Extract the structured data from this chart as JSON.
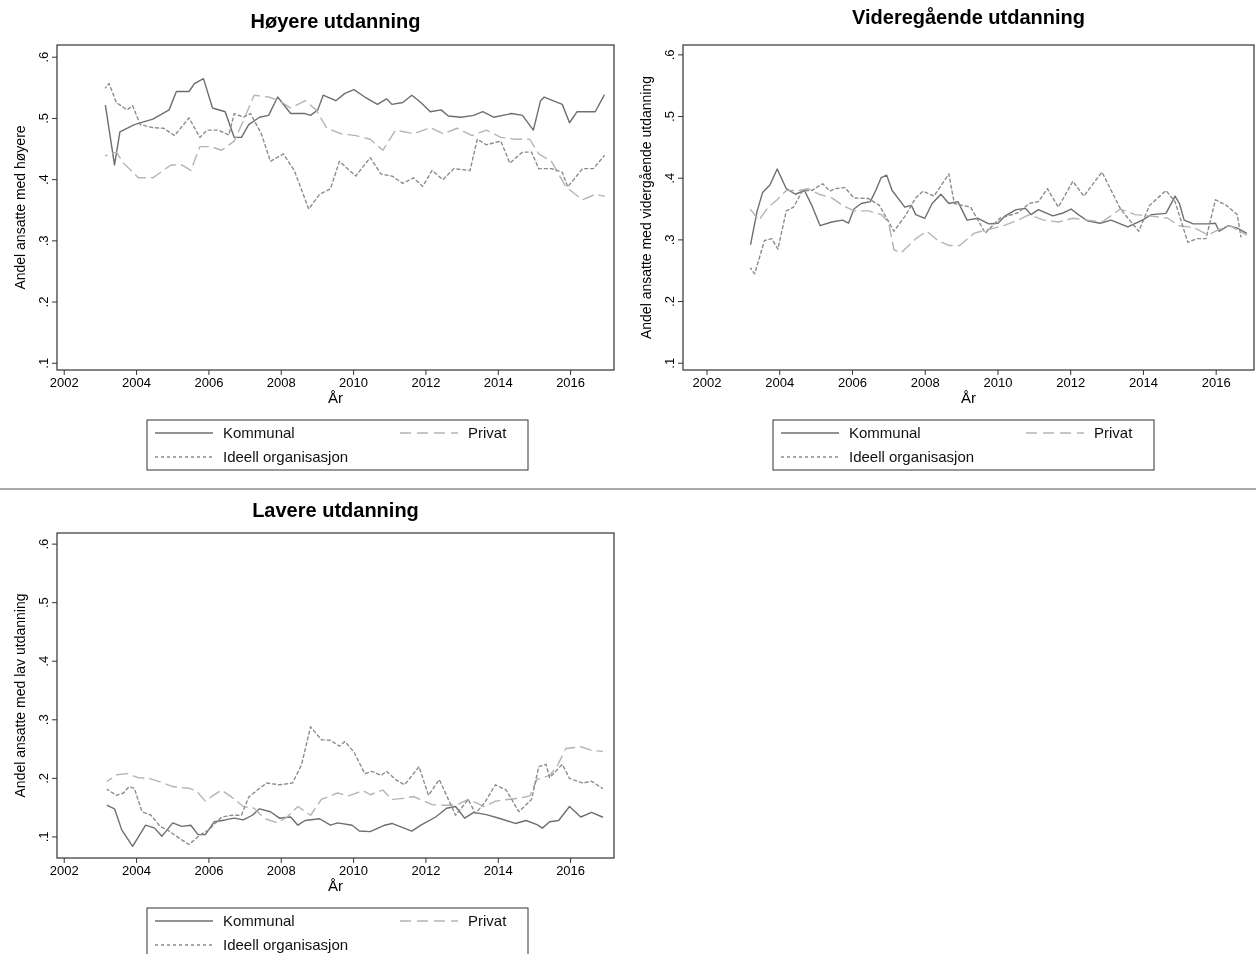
{
  "chart_data": [
    {
      "type": "line",
      "title": "Høyere utdanning",
      "xlabel": "År",
      "ylabel": "Andel ansatte med høyere",
      "xlim": [
        2001.8,
        2017.2
      ],
      "ylim": [
        0.089,
        0.62
      ],
      "xticks": [
        2002,
        2004,
        2006,
        2008,
        2010,
        2012,
        2014,
        2016
      ],
      "yticks": [
        {
          "value": 0.1,
          "label": ".1"
        },
        {
          "value": 0.2,
          "label": ".2"
        },
        {
          "value": 0.3,
          "label": ".3"
        },
        {
          "value": 0.4,
          "label": ".4"
        },
        {
          "value": 0.5,
          "label": ".5"
        },
        {
          "value": 0.6,
          "label": ".6"
        }
      ],
      "legend": "bottom",
      "series": [
        {
          "name": "Kommunal",
          "color": "#6e6e6e",
          "line_style": "solid",
          "x": [
            2003.14,
            2003.39,
            2003.54,
            2003.94,
            2004.45,
            2004.9,
            2005.1,
            2005.45,
            2005.6,
            2005.85,
            2006.1,
            2006.45,
            2006.7,
            2006.9,
            2007.1,
            2007.4,
            2007.65,
            2007.9,
            2008.26,
            2008.66,
            2008.81,
            2009.01,
            2009.16,
            2009.51,
            2009.76,
            2010.01,
            2010.31,
            2010.66,
            2010.91,
            2011.06,
            2011.36,
            2011.61,
            2011.86,
            2012.12,
            2012.42,
            2012.62,
            2012.97,
            2013.32,
            2013.57,
            2013.87,
            2014.37,
            2014.67,
            2014.97,
            2015.17,
            2015.27,
            2015.77,
            2015.97,
            2016.18,
            2016.68,
            2016.93
          ],
          "values": [
            0.521,
            0.424,
            0.478,
            0.49,
            0.499,
            0.514,
            0.544,
            0.544,
            0.557,
            0.565,
            0.517,
            0.511,
            0.469,
            0.469,
            0.49,
            0.502,
            0.505,
            0.535,
            0.508,
            0.508,
            0.505,
            0.514,
            0.538,
            0.529,
            0.541,
            0.547,
            0.535,
            0.523,
            0.532,
            0.523,
            0.526,
            0.538,
            0.526,
            0.511,
            0.514,
            0.504,
            0.502,
            0.505,
            0.511,
            0.502,
            0.508,
            0.505,
            0.481,
            0.529,
            0.535,
            0.523,
            0.493,
            0.511,
            0.511,
            0.538
          ]
        },
        {
          "name": "Privat",
          "color": "#b4b4b4",
          "line_style": "dashed",
          "x": [
            2003.14,
            2003.44,
            2003.64,
            2004.05,
            2004.45,
            2004.95,
            2005.25,
            2005.5,
            2005.75,
            2006.05,
            2006.35,
            2006.7,
            2006.95,
            2007.25,
            2007.65,
            2007.95,
            2008.26,
            2008.66,
            2008.96,
            2009.26,
            2009.66,
            2010.06,
            2010.46,
            2010.81,
            2011.16,
            2011.66,
            2012.12,
            2012.47,
            2012.87,
            2013.27,
            2013.67,
            2014.07,
            2014.47,
            2014.87,
            2015.12,
            2015.47,
            2015.87,
            2016.33,
            2016.68,
            2016.93
          ],
          "values": [
            0.439,
            0.445,
            0.427,
            0.403,
            0.403,
            0.424,
            0.424,
            0.415,
            0.454,
            0.454,
            0.448,
            0.463,
            0.496,
            0.538,
            0.535,
            0.529,
            0.517,
            0.529,
            0.514,
            0.484,
            0.475,
            0.472,
            0.466,
            0.448,
            0.481,
            0.475,
            0.485,
            0.475,
            0.484,
            0.472,
            0.481,
            0.469,
            0.466,
            0.466,
            0.442,
            0.43,
            0.388,
            0.367,
            0.376,
            0.373
          ]
        },
        {
          "name": "Ideell organisasjon",
          "color": "#8c8c8c",
          "line_style": "dotted",
          "x": [
            2003.14,
            2003.24,
            2003.44,
            2003.74,
            2003.89,
            2004.1,
            2004.45,
            2004.75,
            2005.05,
            2005.45,
            2005.75,
            2005.95,
            2006.25,
            2006.55,
            2006.7,
            2006.95,
            2007.15,
            2007.45,
            2007.7,
            2008.06,
            2008.36,
            2008.76,
            2009.06,
            2009.36,
            2009.61,
            2010.06,
            2010.46,
            2010.76,
            2011.06,
            2011.36,
            2011.66,
            2011.91,
            2012.17,
            2012.47,
            2012.77,
            2013.22,
            2013.42,
            2013.67,
            2014.07,
            2014.32,
            2014.67,
            2014.92,
            2015.12,
            2015.47,
            2015.77,
            2015.92,
            2016.33,
            2016.63,
            2016.93
          ],
          "values": [
            0.55,
            0.557,
            0.526,
            0.514,
            0.521,
            0.49,
            0.485,
            0.484,
            0.472,
            0.501,
            0.469,
            0.481,
            0.481,
            0.473,
            0.508,
            0.502,
            0.508,
            0.475,
            0.43,
            0.442,
            0.415,
            0.352,
            0.376,
            0.385,
            0.43,
            0.406,
            0.436,
            0.409,
            0.406,
            0.394,
            0.403,
            0.389,
            0.415,
            0.4,
            0.418,
            0.415,
            0.466,
            0.457,
            0.463,
            0.427,
            0.445,
            0.445,
            0.418,
            0.418,
            0.412,
            0.388,
            0.418,
            0.418,
            0.439
          ]
        }
      ]
    },
    {
      "type": "line",
      "title": "Videregående utdanning",
      "xlabel": "År",
      "ylabel": "Andel ansatte med vidergående utdanning",
      "xlim": [
        2001.34,
        2017.04
      ],
      "ylim": [
        0.089,
        0.616
      ],
      "xticks": [
        2002,
        2004,
        2006,
        2008,
        2010,
        2012,
        2014,
        2016
      ],
      "yticks": [
        {
          "value": 0.1,
          "label": ".1"
        },
        {
          "value": 0.2,
          "label": ".2"
        },
        {
          "value": 0.3,
          "label": ".3"
        },
        {
          "value": 0.4,
          "label": ".4"
        },
        {
          "value": 0.5,
          "label": ".5"
        },
        {
          "value": 0.6,
          "label": ".6"
        }
      ],
      "legend": "bottom",
      "series": [
        {
          "name": "Kommunal",
          "color": "#6e6e6e",
          "line_style": "solid",
          "x": [
            2003.2,
            2003.38,
            2003.53,
            2003.73,
            2003.93,
            2004.18,
            2004.43,
            2004.68,
            2004.88,
            2005.11,
            2005.43,
            2005.73,
            2005.89,
            2006.04,
            2006.24,
            2006.49,
            2006.64,
            2006.79,
            2006.94,
            2007.09,
            2007.44,
            2007.62,
            2007.74,
            2007.99,
            2008.19,
            2008.43,
            2008.65,
            2008.9,
            2009.15,
            2009.45,
            2009.75,
            2010.0,
            2010.2,
            2010.5,
            2010.76,
            2010.91,
            2011.11,
            2011.51,
            2011.81,
            2012.01,
            2012.21,
            2012.46,
            2012.81,
            2013.11,
            2013.57,
            2013.97,
            2014.22,
            2014.62,
            2014.87,
            2014.99,
            2015.12,
            2015.37,
            2015.78,
            2015.98,
            2016.08,
            2016.33,
            2016.58,
            2016.83
          ],
          "values": [
            0.293,
            0.347,
            0.377,
            0.389,
            0.415,
            0.383,
            0.374,
            0.38,
            0.356,
            0.323,
            0.329,
            0.332,
            0.327,
            0.35,
            0.359,
            0.362,
            0.38,
            0.401,
            0.405,
            0.38,
            0.353,
            0.356,
            0.341,
            0.335,
            0.359,
            0.374,
            0.359,
            0.362,
            0.332,
            0.335,
            0.326,
            0.327,
            0.339,
            0.349,
            0.351,
            0.341,
            0.349,
            0.339,
            0.344,
            0.35,
            0.341,
            0.331,
            0.327,
            0.332,
            0.321,
            0.332,
            0.341,
            0.343,
            0.371,
            0.359,
            0.332,
            0.326,
            0.326,
            0.327,
            0.314,
            0.323,
            0.319,
            0.311
          ]
        },
        {
          "name": "Privat",
          "color": "#b4b4b4",
          "line_style": "dashed",
          "x": [
            2003.2,
            2003.43,
            2003.68,
            2003.93,
            2004.18,
            2004.53,
            2004.78,
            2005.08,
            2005.43,
            2005.73,
            2006.04,
            2006.44,
            2006.79,
            2006.99,
            2007.14,
            2007.34,
            2007.74,
            2008.04,
            2008.35,
            2008.65,
            2008.95,
            2009.35,
            2009.75,
            2010.15,
            2010.55,
            2010.86,
            2011.26,
            2011.66,
            2012.06,
            2012.46,
            2012.86,
            2013.37,
            2013.77,
            2014.17,
            2014.67,
            2014.97,
            2015.37,
            2015.78,
            2016.08,
            2016.38,
            2016.83
          ],
          "values": [
            0.349,
            0.332,
            0.353,
            0.365,
            0.38,
            0.38,
            0.383,
            0.374,
            0.368,
            0.356,
            0.347,
            0.347,
            0.341,
            0.329,
            0.284,
            0.279,
            0.302,
            0.314,
            0.299,
            0.291,
            0.291,
            0.311,
            0.317,
            0.323,
            0.332,
            0.341,
            0.332,
            0.329,
            0.335,
            0.332,
            0.329,
            0.35,
            0.341,
            0.339,
            0.335,
            0.323,
            0.32,
            0.308,
            0.317,
            0.323,
            0.308
          ]
        },
        {
          "name": "Ideell organisasjon",
          "color": "#8c8c8c",
          "line_style": "dotted",
          "x": [
            2003.2,
            2003.31,
            2003.58,
            2003.78,
            2003.95,
            2004.18,
            2004.38,
            2004.63,
            2004.88,
            2005.18,
            2005.38,
            2005.53,
            2005.79,
            2006.04,
            2006.44,
            2006.74,
            2007.14,
            2007.44,
            2007.74,
            2007.94,
            2008.24,
            2008.65,
            2008.8,
            2009.25,
            2009.65,
            2010.05,
            2010.55,
            2010.86,
            2011.11,
            2011.36,
            2011.66,
            2012.06,
            2012.36,
            2012.86,
            2013.37,
            2013.87,
            2014.17,
            2014.62,
            2014.87,
            2015.22,
            2015.47,
            2015.72,
            2015.98,
            2016.28,
            2016.58,
            2016.68
          ],
          "values": [
            0.254,
            0.245,
            0.299,
            0.302,
            0.285,
            0.347,
            0.353,
            0.38,
            0.38,
            0.391,
            0.379,
            0.383,
            0.385,
            0.368,
            0.367,
            0.356,
            0.314,
            0.338,
            0.368,
            0.379,
            0.371,
            0.407,
            0.359,
            0.353,
            0.311,
            0.335,
            0.344,
            0.359,
            0.362,
            0.383,
            0.353,
            0.395,
            0.371,
            0.41,
            0.35,
            0.314,
            0.356,
            0.38,
            0.362,
            0.296,
            0.302,
            0.302,
            0.365,
            0.356,
            0.341,
            0.305
          ]
        }
      ]
    },
    {
      "type": "line",
      "title": "Lavere utdanning",
      "xlabel": "År",
      "ylabel": "Andel ansatte med lav utdanning",
      "xlim": [
        2001.8,
        2017.2
      ],
      "ylim": [
        0.064,
        0.619
      ],
      "xticks": [
        2002,
        2004,
        2006,
        2008,
        2010,
        2012,
        2014,
        2016
      ],
      "yticks": [
        {
          "value": 0.1,
          "label": ".1"
        },
        {
          "value": 0.2,
          "label": ".2"
        },
        {
          "value": 0.3,
          "label": ".3"
        },
        {
          "value": 0.4,
          "label": ".4"
        },
        {
          "value": 0.5,
          "label": ".5"
        },
        {
          "value": 0.6,
          "label": ".6"
        }
      ],
      "legend": "bottom",
      "series": [
        {
          "name": "Kommunal",
          "color": "#6e6e6e",
          "line_style": "solid",
          "x": [
            2003.19,
            2003.39,
            2003.59,
            2003.89,
            2004.25,
            2004.5,
            2004.7,
            2005.0,
            2005.25,
            2005.5,
            2005.7,
            2005.9,
            2006.15,
            2006.45,
            2006.7,
            2006.95,
            2007.2,
            2007.4,
            2007.7,
            2007.95,
            2008.26,
            2008.46,
            2008.66,
            2009.06,
            2009.36,
            2009.56,
            2009.96,
            2010.16,
            2010.46,
            2010.86,
            2011.06,
            2011.36,
            2011.61,
            2011.86,
            2012.27,
            2012.57,
            2012.82,
            2013.07,
            2013.32,
            2013.67,
            2014.07,
            2014.47,
            2014.77,
            2015.07,
            2015.22,
            2015.42,
            2015.67,
            2015.97,
            2016.28,
            2016.58,
            2016.88
          ],
          "values": [
            0.154,
            0.148,
            0.112,
            0.084,
            0.12,
            0.115,
            0.101,
            0.124,
            0.118,
            0.12,
            0.104,
            0.104,
            0.126,
            0.129,
            0.132,
            0.129,
            0.137,
            0.148,
            0.143,
            0.132,
            0.134,
            0.12,
            0.128,
            0.131,
            0.12,
            0.124,
            0.12,
            0.11,
            0.109,
            0.12,
            0.123,
            0.116,
            0.11,
            0.12,
            0.134,
            0.149,
            0.152,
            0.132,
            0.142,
            0.138,
            0.131,
            0.123,
            0.128,
            0.121,
            0.115,
            0.126,
            0.128,
            0.152,
            0.134,
            0.142,
            0.134
          ]
        },
        {
          "name": "Privat",
          "color": "#b4b4b4",
          "line_style": "dashed",
          "x": [
            2003.19,
            2003.44,
            2003.74,
            2004.05,
            2004.35,
            2004.65,
            2005.0,
            2005.45,
            2005.65,
            2005.9,
            2006.1,
            2006.35,
            2006.65,
            2006.95,
            2007.25,
            2007.55,
            2007.9,
            2008.16,
            2008.46,
            2008.81,
            2009.11,
            2009.56,
            2009.86,
            2010.26,
            2010.46,
            2010.81,
            2011.06,
            2011.41,
            2011.66,
            2012.17,
            2012.52,
            2012.87,
            2013.17,
            2013.62,
            2013.92,
            2014.27,
            2014.57,
            2014.87,
            2015.07,
            2015.42,
            2015.62,
            2015.87,
            2016.28,
            2016.58,
            2016.88
          ],
          "values": [
            0.195,
            0.206,
            0.208,
            0.201,
            0.2,
            0.194,
            0.186,
            0.183,
            0.179,
            0.161,
            0.17,
            0.18,
            0.167,
            0.152,
            0.149,
            0.131,
            0.124,
            0.134,
            0.152,
            0.137,
            0.164,
            0.175,
            0.17,
            0.179,
            0.172,
            0.18,
            0.164,
            0.166,
            0.169,
            0.155,
            0.154,
            0.155,
            0.164,
            0.152,
            0.161,
            0.164,
            0.166,
            0.17,
            0.198,
            0.205,
            0.22,
            0.251,
            0.254,
            0.248,
            0.246
          ]
        },
        {
          "name": "Ideell organisasjon",
          "color": "#8c8c8c",
          "line_style": "dotted",
          "x": [
            2003.19,
            2003.44,
            2003.64,
            2003.79,
            2003.94,
            2004.15,
            2004.4,
            2004.65,
            2004.85,
            2005.2,
            2005.45,
            2005.75,
            2006.0,
            2006.35,
            2006.65,
            2006.9,
            2007.1,
            2007.4,
            2007.6,
            2007.95,
            2008.31,
            2008.56,
            2008.81,
            2009.11,
            2009.36,
            2009.61,
            2009.76,
            2010.01,
            2010.31,
            2010.51,
            2010.76,
            2010.91,
            2011.16,
            2011.41,
            2011.81,
            2012.07,
            2012.37,
            2012.57,
            2012.82,
            2013.17,
            2013.37,
            2013.62,
            2013.92,
            2014.22,
            2014.57,
            2014.92,
            2015.12,
            2015.32,
            2015.42,
            2015.77,
            2015.97,
            2016.33,
            2016.58,
            2016.88
          ],
          "values": [
            0.181,
            0.171,
            0.175,
            0.186,
            0.183,
            0.143,
            0.137,
            0.118,
            0.112,
            0.097,
            0.087,
            0.103,
            0.112,
            0.134,
            0.137,
            0.137,
            0.168,
            0.183,
            0.192,
            0.189,
            0.192,
            0.223,
            0.288,
            0.266,
            0.265,
            0.255,
            0.263,
            0.245,
            0.208,
            0.212,
            0.205,
            0.212,
            0.198,
            0.189,
            0.22,
            0.171,
            0.198,
            0.171,
            0.137,
            0.164,
            0.14,
            0.158,
            0.189,
            0.18,
            0.143,
            0.164,
            0.22,
            0.224,
            0.201,
            0.224,
            0.2,
            0.192,
            0.195,
            0.183
          ]
        }
      ]
    }
  ]
}
